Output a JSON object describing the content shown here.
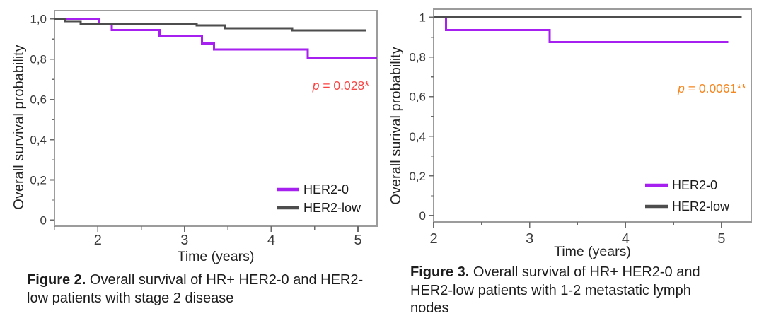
{
  "page": {
    "background": "#ffffff"
  },
  "figures": [
    {
      "name": "figure-2",
      "caption": {
        "label": "Figure 2.",
        "text": " Overall survival of HR+ HER2-0 and HER2-low patients with stage 2 disease"
      },
      "chart_data": {
        "type": "line",
        "subtype": "kaplan_meier_step",
        "title": "",
        "xlabel": "Time (years)",
        "ylabel": "Overall survival probability",
        "xlim": [
          1.5,
          5.22
        ],
        "ylim": [
          -0.03,
          1.041
        ],
        "grid": false,
        "legend_position": "inside-bottom-right",
        "x_ticks": [
          {
            "v": 2,
            "label": "2"
          },
          {
            "v": 3,
            "label": "3"
          },
          {
            "v": 4,
            "label": "4"
          },
          {
            "v": 5,
            "label": "5"
          }
        ],
        "x_minor_ticks": [
          1.5,
          2.5,
          3.5,
          4.5
        ],
        "y_ticks": [
          {
            "v": 1.0,
            "label": "1,0"
          },
          {
            "v": 0.8,
            "label": "0,8"
          },
          {
            "v": 0.6,
            "label": "0,6"
          },
          {
            "v": 0.4,
            "label": "0,4"
          },
          {
            "v": 0.2,
            "label": "0,2"
          },
          {
            "v": 0.0,
            "label": "0"
          }
        ],
        "y_minor_ticks": [
          0.9,
          0.7,
          0.5,
          0.3,
          0.1
        ],
        "series": [
          {
            "name": "HER2-0",
            "color": "#a620ef",
            "points": [
              [
                1.5,
                1.0
              ],
              [
                2.02,
                0.974
              ],
              [
                2.16,
                0.945
              ],
              [
                2.71,
                0.912
              ],
              [
                3.2,
                0.877
              ],
              [
                3.34,
                0.848
              ],
              [
                4.42,
                0.807
              ],
              [
                5.22,
                0.807
              ]
            ]
          },
          {
            "name": "HER2-low",
            "color": "#4d4d4d",
            "points": [
              [
                1.5,
                1.0
              ],
              [
                1.62,
                0.989
              ],
              [
                1.8,
                0.974
              ],
              [
                3.14,
                0.967
              ],
              [
                3.47,
                0.953
              ],
              [
                4.24,
                0.942
              ],
              [
                5.09,
                0.942
              ]
            ]
          }
        ],
        "annotation": {
          "text": "p = 0.028*",
          "color": "#f94341"
        }
      }
    },
    {
      "name": "figure-3",
      "caption": {
        "label": "Figure 3.",
        "text": " Overall survival of HR+ HER2-0 and HER2-low patients with 1-2 metastatic lymph nodes"
      },
      "chart_data": {
        "type": "line",
        "subtype": "kaplan_meier_step",
        "title": "",
        "xlabel": "Time (years)",
        "ylabel": "Overall surival probability",
        "xlim": [
          2,
          5.31
        ],
        "ylim": [
          -0.032,
          1.041
        ],
        "grid": false,
        "legend_position": "inside-bottom-right",
        "x_ticks": [
          {
            "v": 2,
            "label": "2"
          },
          {
            "v": 3,
            "label": "3"
          },
          {
            "v": 4,
            "label": "4"
          },
          {
            "v": 5,
            "label": "5"
          }
        ],
        "x_minor_ticks": [
          2.5,
          3.5,
          4.5
        ],
        "y_ticks": [
          {
            "v": 1.0,
            "label": "1"
          },
          {
            "v": 0.8,
            "label": "0,8"
          },
          {
            "v": 0.6,
            "label": "0,6"
          },
          {
            "v": 0.4,
            "label": "0,4"
          },
          {
            "v": 0.2,
            "label": "0,2"
          },
          {
            "v": 0.0,
            "label": "0"
          }
        ],
        "y_minor_ticks": [
          0.9,
          0.7,
          0.5,
          0.3,
          0.1
        ],
        "series": [
          {
            "name": "HER2-0",
            "color": "#a620ef",
            "points": [
              [
                2.0,
                1.0
              ],
              [
                2.13,
                0.935
              ],
              [
                3.21,
                0.875
              ],
              [
                5.07,
                0.875
              ]
            ]
          },
          {
            "name": "HER2-low",
            "color": "#4d4d4d",
            "points": [
              [
                2.0,
                1.0
              ],
              [
                5.21,
                1.0
              ]
            ]
          }
        ],
        "annotation": {
          "text": "p = 0.0061**",
          "color": "#f6861f"
        }
      }
    }
  ]
}
